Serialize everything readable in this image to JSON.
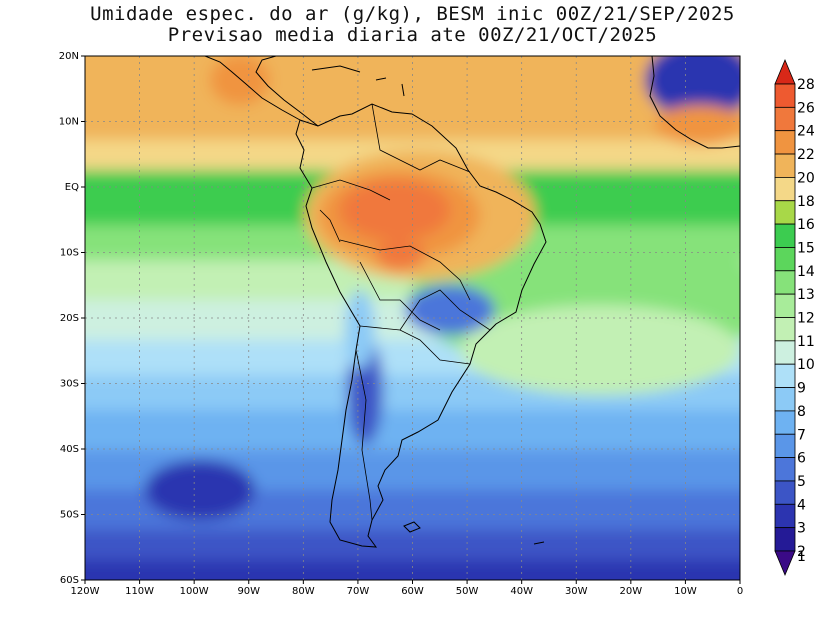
{
  "title_line1": "Umidade espec. do ar (g/kg), BESM inic 00Z/21/SEP/2025",
  "title_line2": "Previsao media diaria ate 00Z/21/OCT/2025",
  "map": {
    "lon_range": [
      -120,
      0
    ],
    "lat_range": [
      -60,
      20
    ],
    "x_ticks": [
      "120W",
      "110W",
      "100W",
      "90W",
      "80W",
      "70W",
      "60W",
      "50W",
      "40W",
      "30W",
      "20W",
      "10W",
      "0"
    ],
    "y_ticks": [
      "20N",
      "10N",
      "EQ",
      "10S",
      "20S",
      "30S",
      "40S",
      "50S",
      "60S"
    ]
  },
  "colorbar": {
    "labels": [
      "1",
      "2",
      "3",
      "4",
      "5",
      "6",
      "7",
      "8",
      "9",
      "10",
      "11",
      "12",
      "13",
      "14",
      "15",
      "16",
      "18",
      "20",
      "22",
      "24",
      "26",
      "28"
    ],
    "colors": [
      "#3a0a86",
      "#241a96",
      "#2c34b0",
      "#3c55c6",
      "#4c76da",
      "#5a96e8",
      "#6eb2f2",
      "#8ccaf6",
      "#aee0f8",
      "#cdf0e0",
      "#c2f0b4",
      "#a8ec9a",
      "#86e27a",
      "#5cd65c",
      "#3ccc50",
      "#a8d848",
      "#f4d888",
      "#f0b45a",
      "#f09440",
      "#f0783c",
      "#ee5a30",
      "#d82818"
    ]
  }
}
